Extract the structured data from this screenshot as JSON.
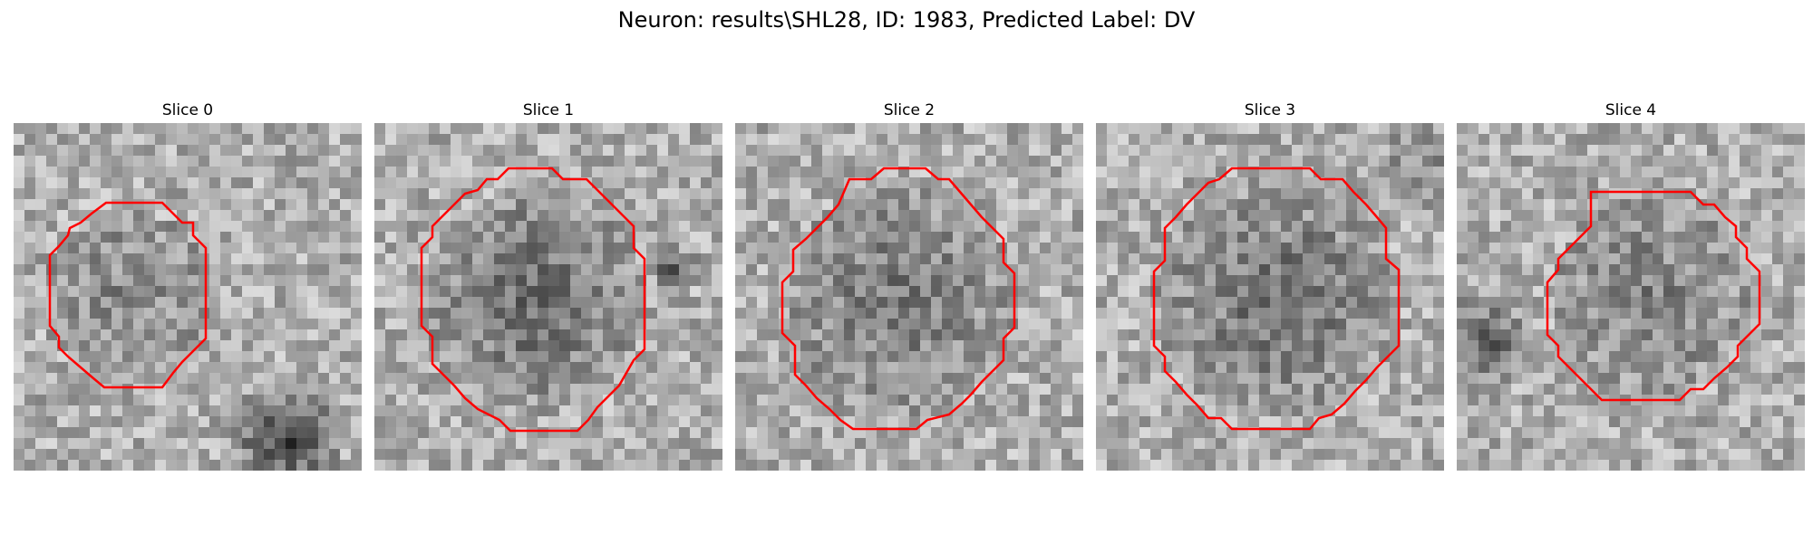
{
  "figure": {
    "title": "Neuron: results\\SHL28, ID: 1983, Predicted Label: DV"
  },
  "panels": [
    {
      "title": "Slice 0",
      "contour_color": "#ff0000",
      "seed": 11
    },
    {
      "title": "Slice 1",
      "contour_color": "#ff0000",
      "seed": 29
    },
    {
      "title": "Slice 2",
      "contour_color": "#ff0000",
      "seed": 47
    },
    {
      "title": "Slice 3",
      "contour_color": "#ff0000",
      "seed": 83
    },
    {
      "title": "Slice 4",
      "contour_color": "#ff0000",
      "seed": 101
    }
  ]
}
